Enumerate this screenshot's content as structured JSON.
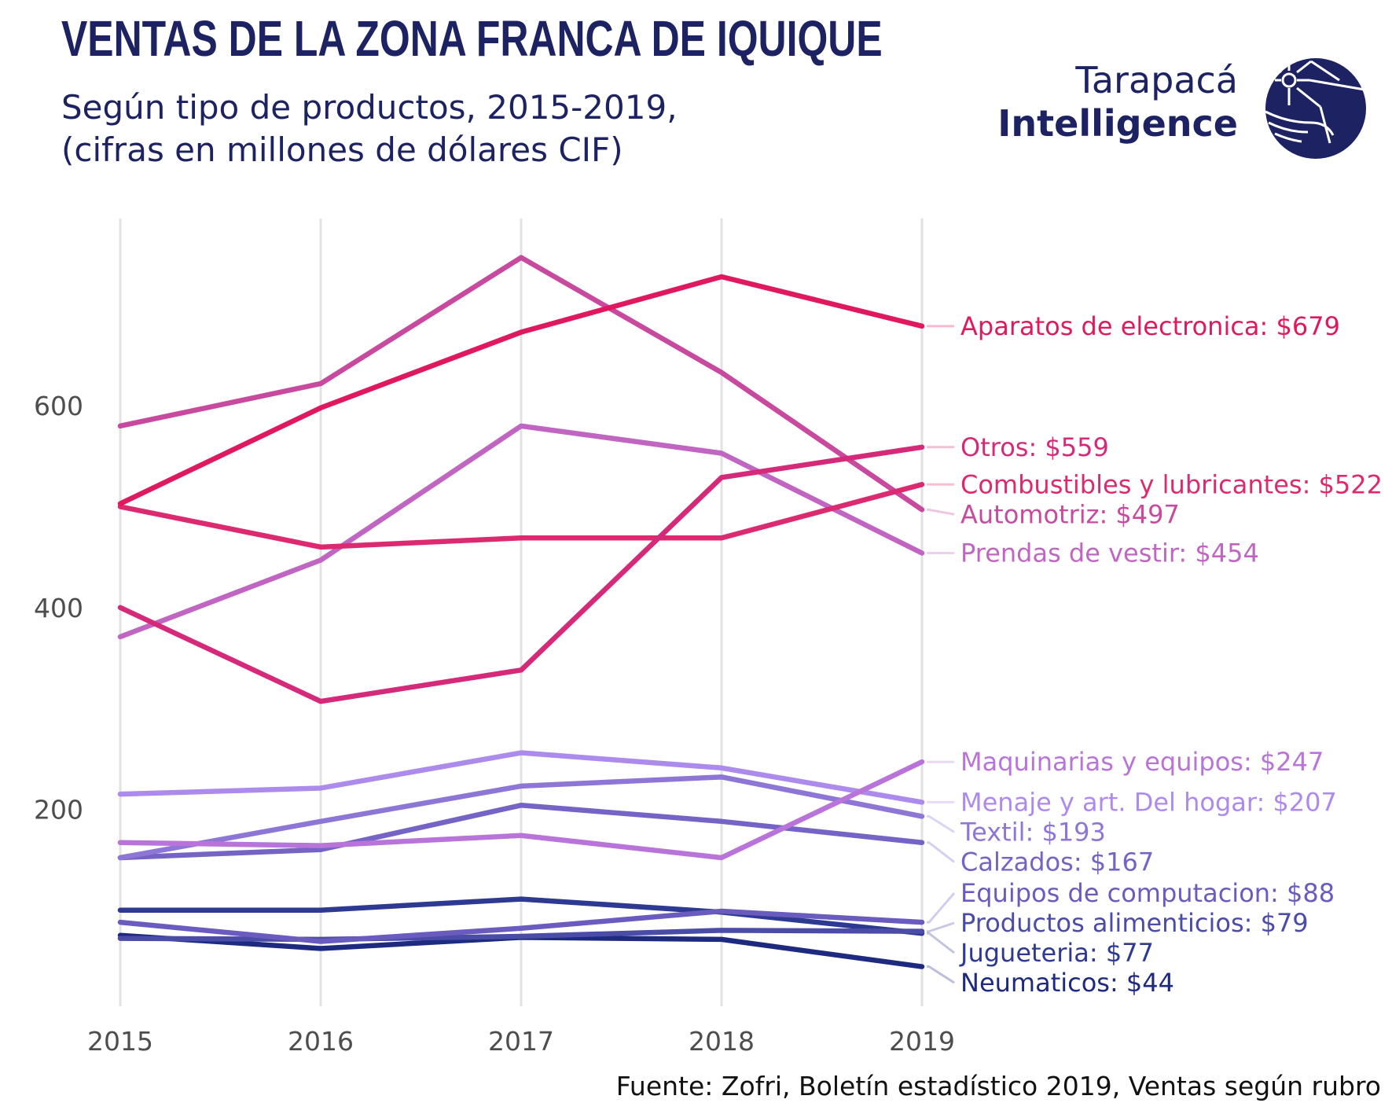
{
  "header": {
    "title": "VENTAS DE LA ZONA FRANCA DE IQUIQUE",
    "subtitle_line1": "Según tipo de productos, 2015-2019,",
    "subtitle_line2": "(cifras en millones de dólares CIF)"
  },
  "logo": {
    "line1": "Tarapacá",
    "line2": "Intelligence",
    "icon": "tarapaca-intelligence-logo-icon",
    "color": "#1d2362"
  },
  "footer": {
    "source": "Fuente: Zofri, Boletín estadístico 2019, Ventas según rubro"
  },
  "chart_data": {
    "type": "line",
    "x": [
      "2015",
      "2016",
      "2017",
      "2018",
      "2019"
    ],
    "yticks": [
      200,
      400,
      600
    ],
    "ylim": [
      0,
      770
    ],
    "grid": "vertical",
    "legend": "direct labels at right",
    "series": [
      {
        "name": "Aparatos de electronica",
        "label": "Aparatos de electronica: $679",
        "color": "#e0195e",
        "values": [
          503,
          598,
          673,
          728,
          679
        ]
      },
      {
        "name": "Otros",
        "label": "Otros: $559",
        "color": "#d52a79",
        "values": [
          400,
          307,
          338,
          529,
          559
        ]
      },
      {
        "name": "Combustibles y lubricantes",
        "label": "Combustibles y lubricantes: $522",
        "color": "#db2a6f",
        "values": [
          500,
          460,
          469,
          469,
          522
        ]
      },
      {
        "name": "Automotriz",
        "label": "Automotriz: $497",
        "color": "#c84a9f",
        "values": [
          580,
          622,
          747,
          633,
          497
        ]
      },
      {
        "name": "Prendas de vestir",
        "label": "Prendas de vestir: $454",
        "color": "#c066c2",
        "values": [
          371,
          447,
          580,
          553,
          454
        ]
      },
      {
        "name": "Maquinarias y equipos",
        "label": "Maquinarias y equipos: $247",
        "color": "#b974d9",
        "values": [
          167,
          164,
          174,
          152,
          247
        ]
      },
      {
        "name": "Menaje y art. Del hogar",
        "label": "Menaje y art. Del hogar: $207",
        "color": "#ac8bec",
        "values": [
          215,
          221,
          256,
          241,
          207
        ]
      },
      {
        "name": "Textil",
        "label": "Textil: $193",
        "color": "#8e76d6",
        "values": [
          152,
          188,
          223,
          232,
          193
        ]
      },
      {
        "name": "Calzados",
        "label": "Calzados: $167",
        "color": "#7563c5",
        "values": [
          152,
          160,
          204,
          188,
          167
        ]
      },
      {
        "name": "Equipos de computacion",
        "label": "Equipos de computacion: $88",
        "color": "#6a5bbf",
        "values": [
          88,
          69,
          82,
          99,
          88
        ]
      },
      {
        "name": "Productos alimenticios",
        "label": "Productos alimenticios: $79",
        "color": "#4b4ba8",
        "values": [
          72,
          71,
          74,
          80,
          79
        ]
      },
      {
        "name": "Jugueteria",
        "label": "Jugueteria: $77",
        "color": "#2e3a91",
        "values": [
          100,
          100,
          111,
          98,
          77
        ]
      },
      {
        "name": "Neumaticos",
        "label": "Neumaticos: $44",
        "color": "#1d2a80",
        "values": [
          75,
          62,
          73,
          71,
          44
        ]
      }
    ]
  }
}
